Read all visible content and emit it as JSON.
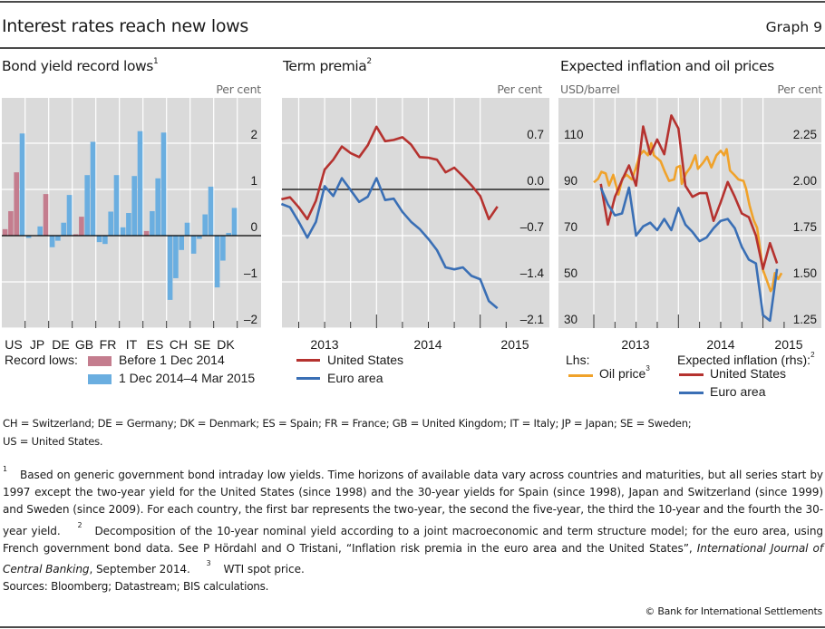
{
  "header": {
    "title": "Interest rates reach new lows",
    "graph_number": "Graph 9"
  },
  "colors": {
    "plot_bg": "#DADADA",
    "grid": "#FFFFFF",
    "before_bar": "#C47D8E",
    "recent_bar": "#6AAEE0",
    "us_line": "#B5322F",
    "ea_line": "#3A6FB5",
    "oil_line": "#F0A22A"
  },
  "panels": {
    "bond": {
      "title": "Bond yield record lows",
      "title_sup": "1",
      "unit": "Per cent",
      "legend_label": "Record lows:",
      "legend": [
        "Before 1 Dec 2014",
        "1 Dec 2014–4 Mar 2015"
      ]
    },
    "term": {
      "title": "Term premia",
      "title_sup": "2",
      "unit": "Per cent",
      "legend": [
        "United States",
        "Euro area"
      ]
    },
    "infl": {
      "title": "Expected inflation and oil prices",
      "unit_left": "USD/barrel",
      "unit_right": "Per cent",
      "legend_lhs_label": "Lhs:",
      "legend_oil": "Oil price",
      "legend_oil_sup": "3",
      "legend_rhs_label": "Expected inflation (rhs):",
      "legend_rhs_sup": "2",
      "legend": [
        "United States",
        "Euro area"
      ]
    }
  },
  "chart_data": [
    {
      "type": "bar",
      "title": "Bond yield record lows",
      "ylabel": "Per cent",
      "ylim": [
        -2,
        2.9
      ],
      "yticks": [
        2,
        1,
        0,
        -1,
        -2
      ],
      "ytick_labels": [
        "2",
        "1",
        "0",
        "–1",
        "–2"
      ],
      "categories": [
        "US",
        "JP",
        "DE",
        "GB",
        "FR",
        "IT",
        "ES",
        "CH",
        "SE",
        "DK"
      ],
      "maturities": [
        "2-year",
        "5-year",
        "10-year",
        "30-year"
      ],
      "series_legend": [
        "Before 1 Dec 2014",
        "1 Dec 2014–4 Mar 2015"
      ],
      "values": [
        [
          0.14,
          0.53,
          1.37,
          2.21
        ],
        [
          -0.05,
          null,
          0.2,
          0.9
        ],
        [
          -0.25,
          -0.11,
          0.28,
          0.88
        ],
        [
          0.03,
          0.41,
          1.31,
          2.03
        ],
        [
          -0.14,
          -0.18,
          0.52,
          1.31
        ],
        [
          0.18,
          0.49,
          1.29,
          2.26
        ],
        [
          0.1,
          0.53,
          1.24,
          2.23
        ],
        [
          -1.39,
          -0.92,
          -0.31,
          0.28
        ],
        [
          -0.39,
          -0.07,
          0.46,
          1.06
        ],
        [
          -1.12,
          -0.54,
          0.06,
          0.6
        ]
      ],
      "period": [
        [
          "before",
          "before",
          "before",
          "recent"
        ],
        [
          "recent",
          null,
          "recent",
          "before"
        ],
        [
          "recent",
          "recent",
          "recent",
          "recent"
        ],
        [
          "before",
          "before",
          "recent",
          "recent"
        ],
        [
          "recent",
          "recent",
          "recent",
          "recent"
        ],
        [
          "recent",
          "recent",
          "recent",
          "recent"
        ],
        [
          "before",
          "recent",
          "recent",
          "recent"
        ],
        [
          "recent",
          "recent",
          "recent",
          "recent"
        ],
        [
          "recent",
          "recent",
          "recent",
          "recent"
        ],
        [
          "recent",
          "recent",
          "recent",
          "recent"
        ]
      ],
      "grid": true
    },
    {
      "type": "line",
      "title": "Term premia",
      "ylabel": "Per cent",
      "ylim": [
        -2.1,
        1.4
      ],
      "yticks": [
        0.7,
        0.0,
        -0.7,
        -1.4,
        -2.1
      ],
      "ytick_labels": [
        "0.7",
        "0.0",
        "–0.7",
        "–1.4",
        "–2.1"
      ],
      "xlim": [
        2013.09,
        2015.4
      ],
      "xtick_labels": [
        "2013",
        "2014",
        "2015"
      ],
      "x_start": 2013.083,
      "x_step_months": 1,
      "series": [
        {
          "name": "United States",
          "values": [
            -0.15,
            -0.12,
            -0.27,
            -0.45,
            -0.17,
            0.3,
            0.45,
            0.65,
            0.55,
            0.49,
            0.67,
            0.95,
            0.73,
            0.75,
            0.79,
            0.68,
            0.49,
            0.48,
            0.45,
            0.26,
            0.33,
            0.2,
            0.06,
            -0.1,
            -0.45,
            -0.26
          ]
        },
        {
          "name": "Euro area",
          "values": [
            -0.22,
            -0.27,
            -0.49,
            -0.73,
            -0.49,
            0.05,
            -0.1,
            0.17,
            -0.01,
            -0.19,
            -0.11,
            0.17,
            -0.16,
            -0.14,
            -0.34,
            -0.49,
            -0.6,
            -0.75,
            -0.92,
            -1.18,
            -1.21,
            -1.18,
            -1.31,
            -1.36,
            -1.69,
            -1.8
          ]
        }
      ],
      "grid": true,
      "legend_placement": "bottom"
    },
    {
      "type": "line",
      "title": "Expected inflation and oil prices",
      "ylabel_left": "USD/barrel",
      "ylabel_right": "Per cent",
      "ylim_left": [
        30,
        130
      ],
      "ylim_right": [
        1.25,
        2.5
      ],
      "yticks_left": [
        110,
        90,
        70,
        50,
        30
      ],
      "yticks_right": [
        2.25,
        2.0,
        1.75,
        1.5,
        1.25
      ],
      "ytick_labels_right": [
        "2.25",
        "2.00",
        "1.75",
        "1.50",
        "1.25"
      ],
      "xlim": [
        2012.58,
        2015.7
      ],
      "xtick_labels": [
        "2013",
        "2014",
        "2015"
      ],
      "x_start": 2013.083,
      "x_step_months": 1,
      "series": [
        {
          "name": "Oil price",
          "axis": "left",
          "x": [
            2013.0,
            2013.05,
            2013.09,
            2013.14,
            2013.18,
            2013.23,
            2013.29,
            2013.34,
            2013.39,
            2013.45,
            2013.5,
            2013.54,
            2013.59,
            2013.64,
            2013.68,
            2013.71,
            2013.79,
            2013.84,
            2013.89,
            2013.95,
            2013.98,
            2014.02,
            2014.04,
            2014.09,
            2014.14,
            2014.2,
            2014.23,
            2014.29,
            2014.34,
            2014.39,
            2014.45,
            2014.5,
            2014.54,
            2014.57,
            2014.61,
            2014.66,
            2014.71,
            2014.77,
            2014.8,
            2014.84,
            2014.89,
            2014.93,
            2014.96,
            2015.0,
            2015.04,
            2015.09,
            2015.11,
            2015.14,
            2015.18,
            2015.22
          ],
          "values": [
            93.0,
            94.6,
            97.6,
            96.9,
            91.7,
            96.3,
            87.8,
            95.0,
            96.3,
            94.3,
            99.5,
            104.8,
            106.7,
            104.8,
            110.0,
            104.8,
            102.2,
            97.6,
            93.7,
            94.3,
            99.5,
            100.2,
            92.4,
            96.9,
            99.5,
            104.8,
            98.9,
            101.5,
            104.1,
            99.5,
            104.8,
            106.7,
            104.8,
            107.4,
            98.2,
            96.3,
            94.3,
            93.7,
            90.4,
            83.2,
            76.7,
            73.4,
            65.6,
            55.1,
            51.2,
            46.0,
            47.3,
            53.8,
            51.2,
            53.8
          ]
        },
        {
          "name": "United States",
          "axis": "right",
          "values": [
            2.03,
            1.81,
            1.96,
            2.05,
            2.13,
            2.02,
            2.34,
            2.19,
            2.27,
            2.19,
            2.4,
            2.33,
            2.02,
            1.96,
            1.98,
            1.98,
            1.83,
            1.93,
            2.04,
            1.96,
            1.87,
            1.85,
            1.75,
            1.57,
            1.71,
            1.6
          ]
        },
        {
          "name": "Euro area",
          "axis": "right",
          "values": [
            2.01,
            1.92,
            1.86,
            1.87,
            2.01,
            1.75,
            1.8,
            1.82,
            1.78,
            1.84,
            1.78,
            1.9,
            1.81,
            1.77,
            1.72,
            1.74,
            1.79,
            1.83,
            1.84,
            1.79,
            1.69,
            1.62,
            1.6,
            1.32,
            1.29,
            1.57
          ]
        }
      ],
      "grid": true,
      "legend_placement": "bottom"
    }
  ],
  "notes": {
    "abbreviations": "CH = Switzerland;  DE = Germany;  DK = Denmark;  ES = Spain;  FR = France;  GB = United  Kingdom;  IT = Italy;  JP = Japan;  SE = Sweden;",
    "abbreviations_2": "US = United States.",
    "fn1_mark": "1",
    "fn1": "Based on generic government bond intraday low yields. Time horizons of available data vary across countries and maturities, but all series start by 1997 except the two-year yield for the United States (since 1998) and the 30-year yields for Spain (since 1998), Japan and Switzerland (since 1999) and Sweden (since 2009). For each country, the first bar represents the two-year, the second the five-year, the third the 10-year and the fourth the 30-year yield.",
    "fn2_mark": "2",
    "fn2": "Decomposition of the 10-year nominal yield according to a joint macroeconomic and term structure model; for the euro area, using French government bond data. See P Hördahl and O Tristani, “Inflation risk premia in the euro area and the United States”, ",
    "fn2_journal": "International Journal of Central Banking",
    "fn2_end": ", September 2014.",
    "fn3_mark": "3",
    "fn3": "WTI spot price.",
    "sources": "Sources: Bloomberg; Datastream; BIS calculations.",
    "copyright": "© Bank for International Settlements"
  }
}
